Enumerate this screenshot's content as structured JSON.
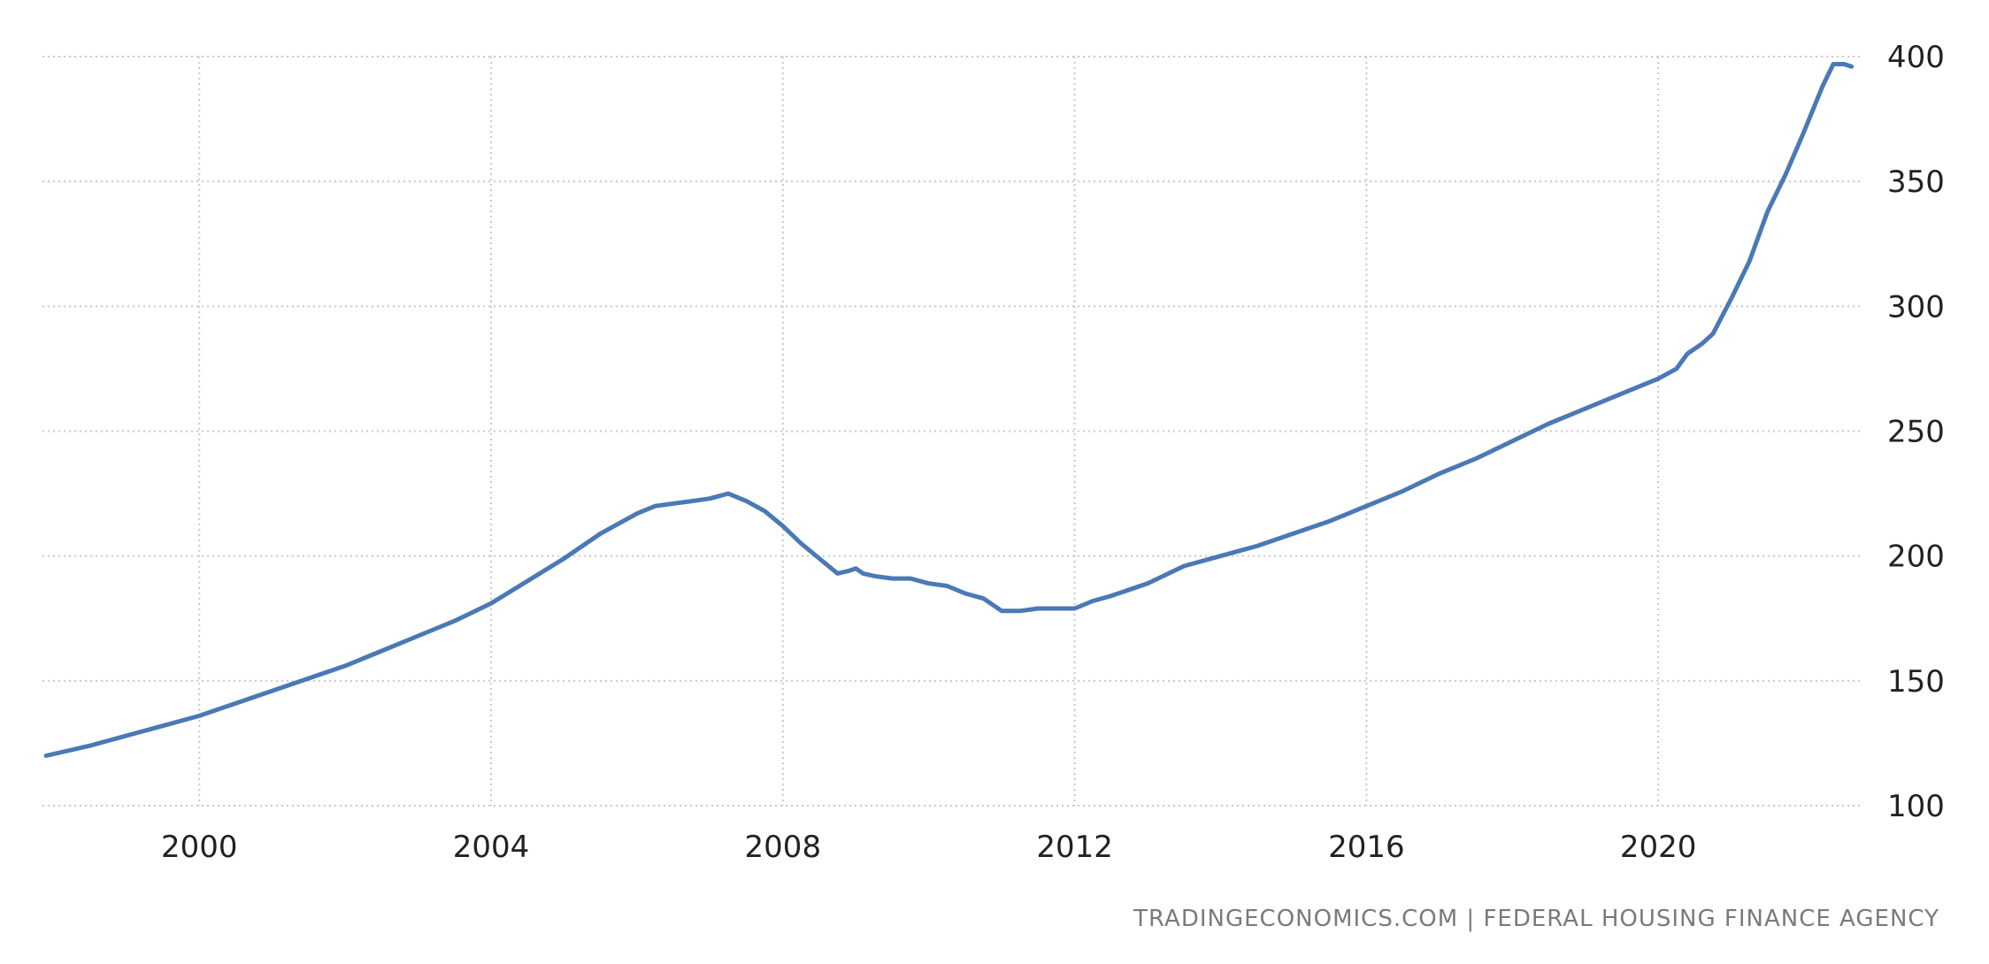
{
  "chart_data": {
    "type": "line",
    "title": "",
    "xlabel": "",
    "ylabel": "",
    "xlim": [
      1997.85,
      2022.8
    ],
    "ylim": [
      100,
      400
    ],
    "x_ticks": [
      2000,
      2004,
      2008,
      2012,
      2016,
      2020
    ],
    "y_ticks": [
      100,
      150,
      200,
      250,
      300,
      350,
      400
    ],
    "y_axis_side": "right",
    "grid": true,
    "legend": "none",
    "series": [
      {
        "color": "#4a79b5",
        "x": [
          1997.9,
          1998.5,
          1999.0,
          1999.5,
          2000.0,
          2000.5,
          2001.0,
          2001.5,
          2002.0,
          2002.5,
          2003.0,
          2003.5,
          2004.0,
          2004.5,
          2005.0,
          2005.5,
          2006.0,
          2006.25,
          2006.5,
          2006.75,
          2007.0,
          2007.25,
          2007.5,
          2007.75,
          2008.0,
          2008.25,
          2008.5,
          2008.75,
          2008.9,
          2009.0,
          2009.1,
          2009.25,
          2009.5,
          2009.75,
          2010.0,
          2010.25,
          2010.5,
          2010.75,
          2011.0,
          2011.25,
          2011.5,
          2011.75,
          2012.0,
          2012.25,
          2012.5,
          2013.0,
          2013.5,
          2014.0,
          2014.5,
          2015.0,
          2015.5,
          2016.0,
          2016.5,
          2017.0,
          2017.5,
          2018.0,
          2018.5,
          2019.0,
          2019.5,
          2020.0,
          2020.25,
          2020.4,
          2020.6,
          2020.75,
          2021.0,
          2021.25,
          2021.5,
          2021.75,
          2022.0,
          2022.25,
          2022.4,
          2022.55,
          2022.65
        ],
        "y": [
          120,
          124,
          128,
          132,
          136,
          141,
          146,
          151,
          156,
          162,
          168,
          174,
          181,
          190,
          199,
          209,
          217,
          220,
          221,
          222,
          223,
          225,
          222,
          218,
          212,
          205,
          199,
          193,
          194,
          195,
          193,
          192,
          191,
          191,
          189,
          188,
          185,
          183,
          178,
          178,
          179,
          179,
          179,
          182,
          184,
          189,
          196,
          200,
          204,
          209,
          214,
          220,
          226,
          233,
          239,
          246,
          253,
          259,
          265,
          271,
          275,
          281,
          285,
          289,
          303,
          318,
          338,
          353,
          370,
          388,
          397,
          397,
          396
        ]
      }
    ]
  },
  "source": {
    "text": "TRADINGECONOMICS.COM  |  FEDERAL HOUSING FINANCE AGENCY"
  }
}
